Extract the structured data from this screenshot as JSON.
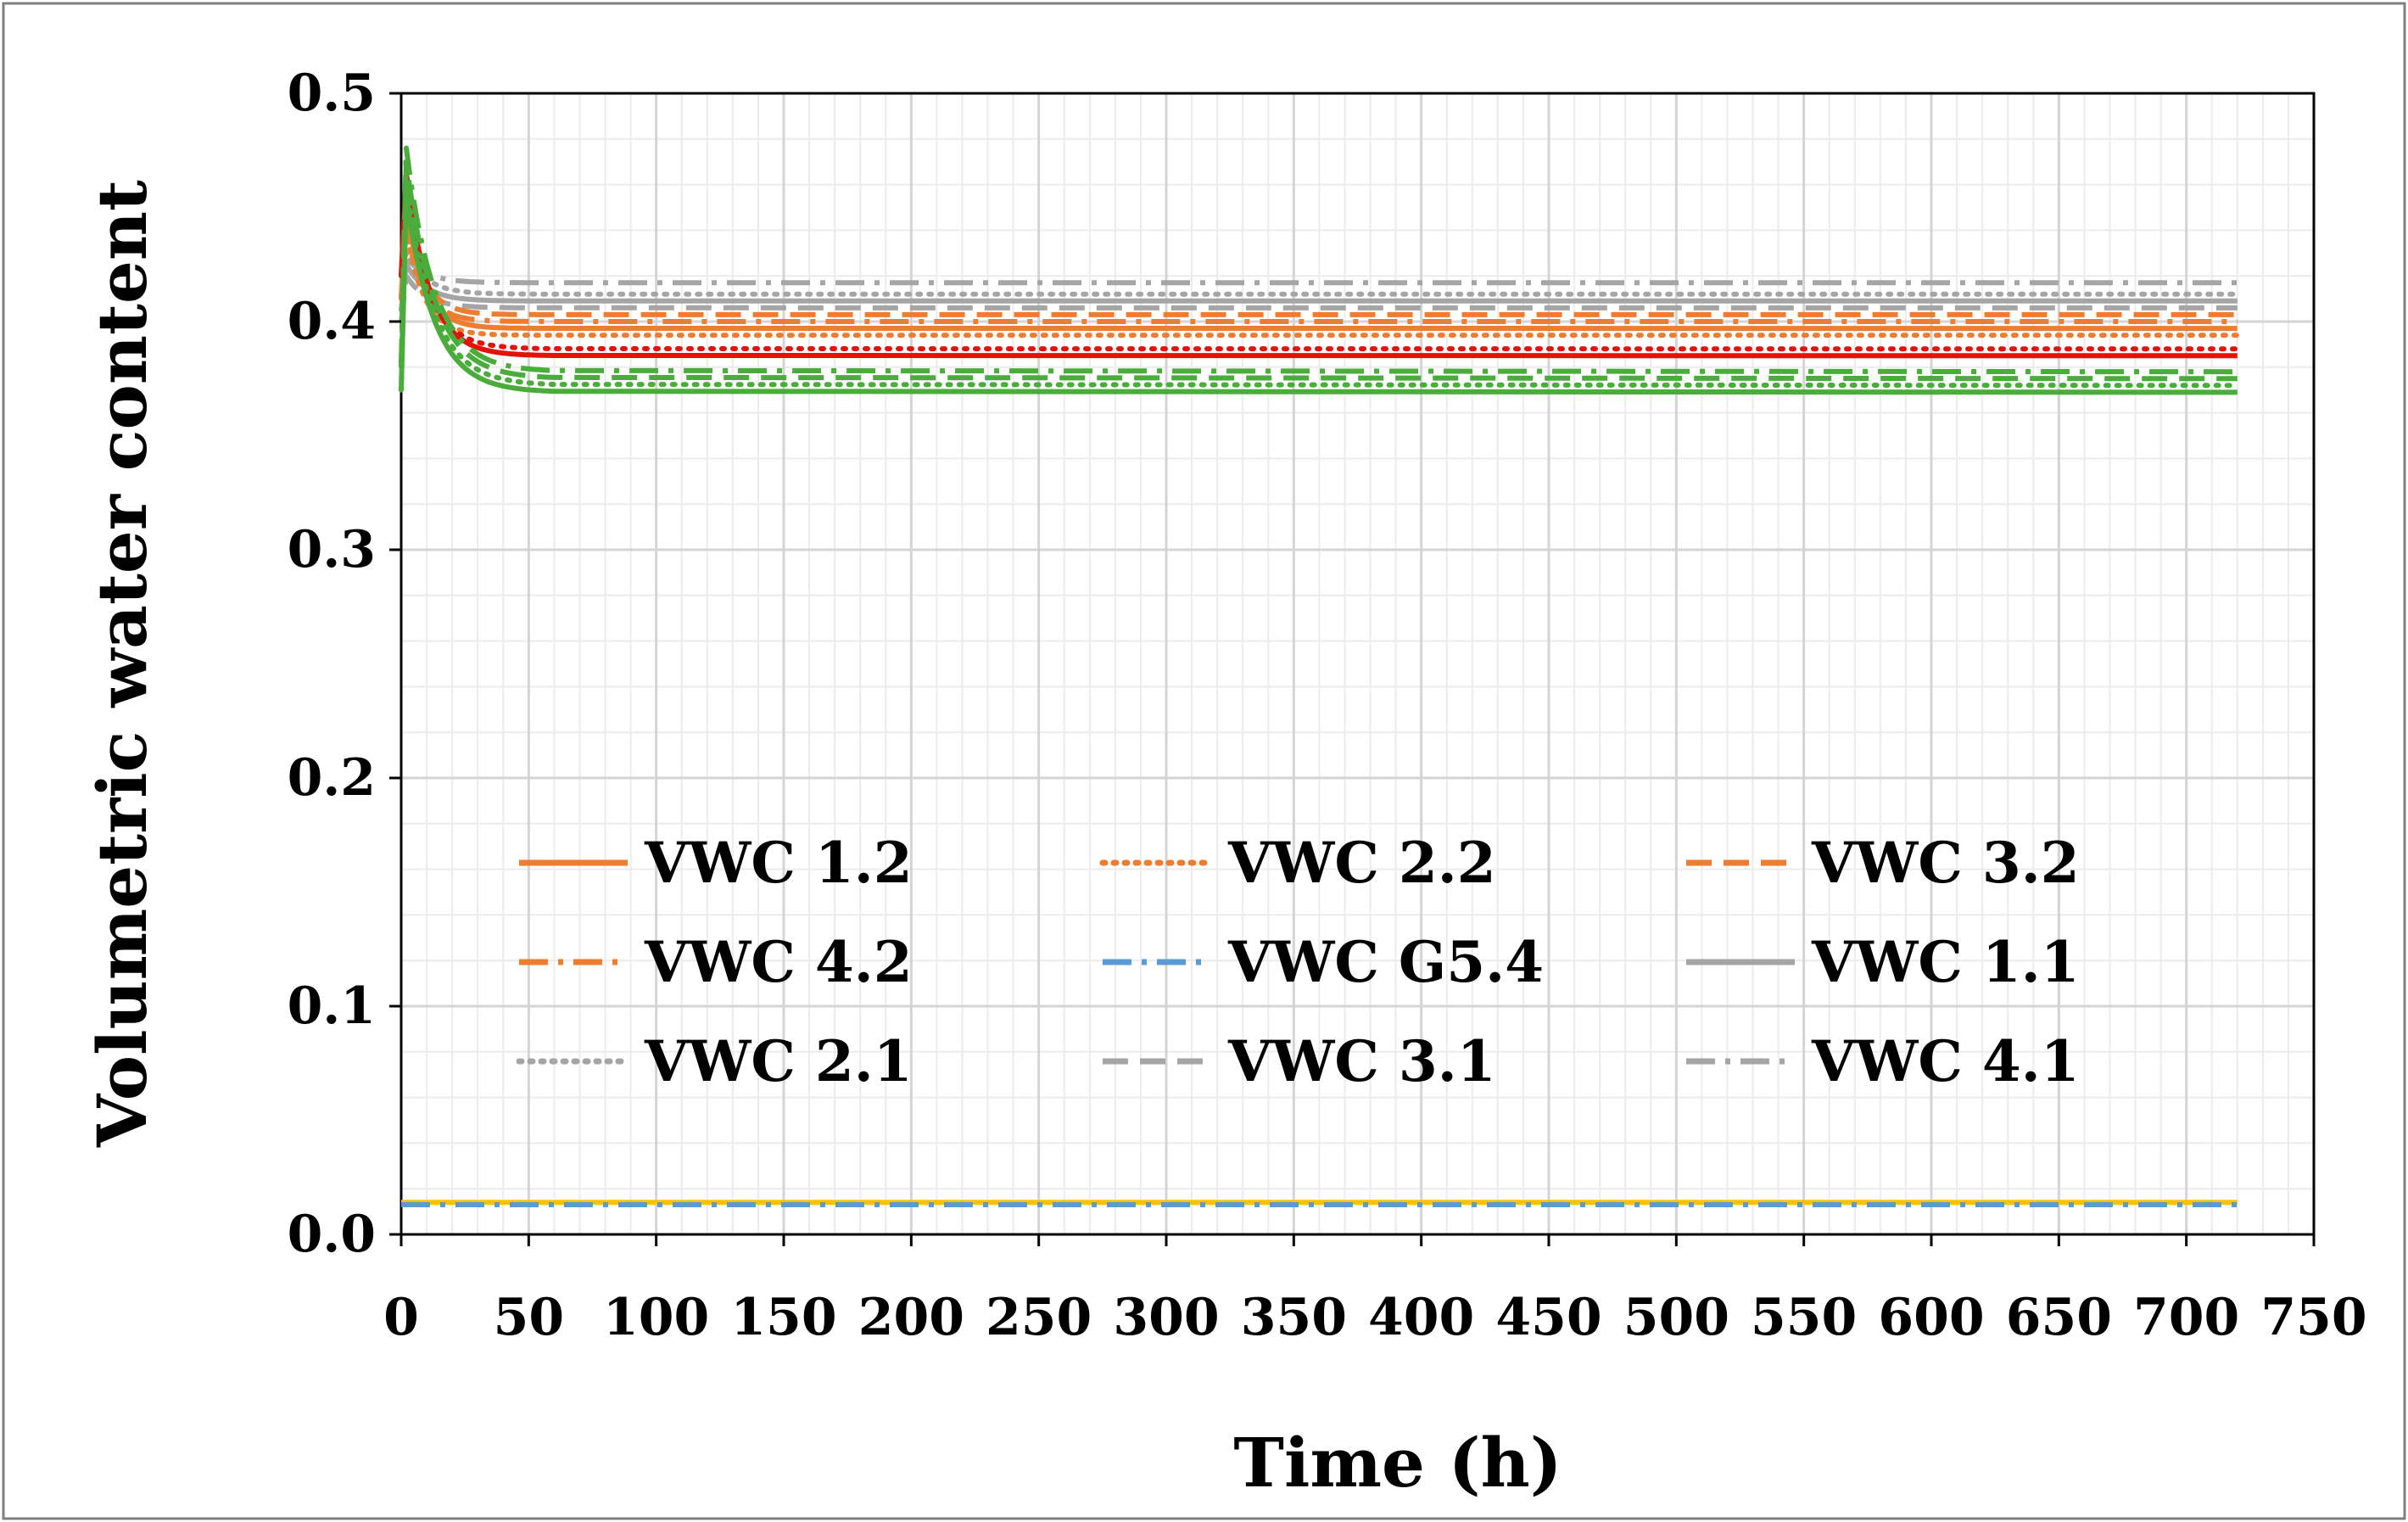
{
  "chart_data": {
    "type": "line",
    "title": "",
    "xlabel": "Time (h)",
    "ylabel": "Volumetric water content",
    "xlim": [
      0,
      750
    ],
    "ylim": [
      0.0,
      0.5
    ],
    "x_major_step": 50,
    "y_major_step": 0.1,
    "x_minor_step": 10,
    "y_minor_step": 0.02,
    "grid": true,
    "x_ticks": [
      "0",
      "50",
      "100",
      "150",
      "200",
      "250",
      "300",
      "350",
      "400",
      "450",
      "500",
      "550",
      "600",
      "650",
      "700",
      "750"
    ],
    "y_ticks": [
      "0.0",
      "0.1",
      "0.2",
      "0.3",
      "0.4",
      "0.5"
    ],
    "legend_position": "center-left, inside plot, 3 columns",
    "legend": [
      {
        "label": "VWC 1.2",
        "color": "#ED7D31",
        "dash": "solid"
      },
      {
        "label": "VWC 2.2",
        "color": "#ED7D31",
        "dash": "dot"
      },
      {
        "label": "VWC 3.2",
        "color": "#ED7D31",
        "dash": "dash"
      },
      {
        "label": "VWC 4.2",
        "color": "#ED7D31",
        "dash": "dashdot"
      },
      {
        "label": "VWC G5.4",
        "color": "#5B9BD5",
        "dash": "dashdot"
      },
      {
        "label": "VWC 1.1",
        "color": "#A5A5A5",
        "dash": "solid"
      },
      {
        "label": "VWC 2.1",
        "color": "#A5A5A5",
        "dash": "dot"
      },
      {
        "label": "VWC 3.1",
        "color": "#A5A5A5",
        "dash": "dash"
      },
      {
        "label": "VWC 4.1",
        "color": "#A5A5A5",
        "dash": "dashdot"
      }
    ],
    "series": [
      {
        "name": "VWC 4.1",
        "color": "#A5A5A5",
        "dash": "dashdot",
        "start": 0.405,
        "peak": 0.428,
        "steady": 0.417,
        "tau": 8,
        "x_end": 720
      },
      {
        "name": "VWC 2.1",
        "color": "#A5A5A5",
        "dash": "dot",
        "start": 0.405,
        "peak": 0.43,
        "steady": 0.412,
        "tau": 8,
        "x_end": 720
      },
      {
        "name": "VWC 1.1",
        "color": "#A5A5A5",
        "dash": "solid",
        "start": 0.405,
        "peak": 0.425,
        "steady": 0.409,
        "tau": 8,
        "x_end": 720
      },
      {
        "name": "VWC 3.1",
        "color": "#A5A5A5",
        "dash": "dash",
        "start": 0.4,
        "peak": 0.42,
        "steady": 0.406,
        "tau": 8,
        "x_end": 720
      },
      {
        "name": "VWC 3.2",
        "color": "#ED7D31",
        "dash": "dash",
        "start": 0.41,
        "peak": 0.445,
        "steady": 0.403,
        "tau": 7,
        "x_end": 720
      },
      {
        "name": "VWC 4.2",
        "color": "#ED7D31",
        "dash": "dashdot",
        "start": 0.41,
        "peak": 0.44,
        "steady": 0.4,
        "tau": 7,
        "x_end": 720
      },
      {
        "name": "VWC 1.2",
        "color": "#ED7D31",
        "dash": "solid",
        "start": 0.41,
        "peak": 0.45,
        "steady": 0.397,
        "tau": 7,
        "x_end": 720
      },
      {
        "name": "VWC 2.2",
        "color": "#ED7D31",
        "dash": "dot",
        "start": 0.41,
        "peak": 0.44,
        "steady": 0.394,
        "tau": 7,
        "x_end": 720
      },
      {
        "name": "Red solid",
        "color": "#E3120B",
        "dash": "solid",
        "start": 0.42,
        "peak": 0.465,
        "steady": 0.385,
        "tau": 9,
        "x_end": 720
      },
      {
        "name": "Red dotted",
        "color": "#E3120B",
        "dash": "dot",
        "start": 0.42,
        "peak": 0.455,
        "steady": 0.388,
        "tau": 9,
        "x_end": 720
      },
      {
        "name": "Green dashdot",
        "color": "#4AAD3B",
        "dash": "dashdot",
        "start": 0.38,
        "peak": 0.476,
        "steady": 0.378,
        "tau": 11,
        "x_end": 720
      },
      {
        "name": "Green dash",
        "color": "#4AAD3B",
        "dash": "dash",
        "start": 0.38,
        "peak": 0.47,
        "steady": 0.375,
        "tau": 11,
        "x_end": 720
      },
      {
        "name": "Green dotted",
        "color": "#4AAD3B",
        "dash": "dot",
        "start": 0.37,
        "peak": 0.46,
        "steady": 0.372,
        "tau": 11,
        "x_end": 720
      },
      {
        "name": "Green solid",
        "color": "#4AAD3B",
        "dash": "solid",
        "start": 0.37,
        "peak": 0.455,
        "steady": 0.369,
        "tau": 11,
        "x_end": 720
      },
      {
        "name": "Yellow solid",
        "color": "#FFC000",
        "dash": "solid",
        "start": 0.014,
        "peak": 0.014,
        "steady": 0.014,
        "tau": 1,
        "x_end": 720
      },
      {
        "name": "VWC G5.4",
        "color": "#5B9BD5",
        "dash": "dashdot",
        "start": 0.013,
        "peak": 0.013,
        "steady": 0.013,
        "tau": 1,
        "x_end": 720
      }
    ]
  }
}
